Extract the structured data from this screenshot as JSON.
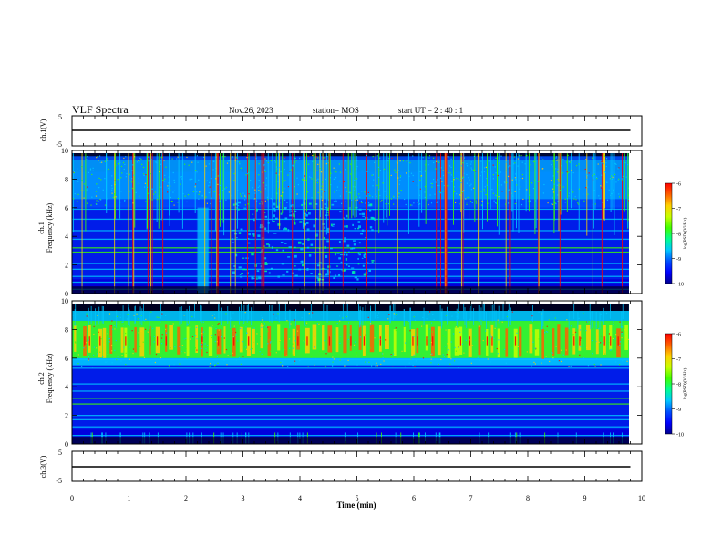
{
  "header": {
    "title": "VLF Spectra",
    "date": "Nov.26, 2023",
    "station": "station= MOS",
    "start_ut": "start  UT =   2 : 40 : 1"
  },
  "colorbar_label": "log(PSD)(V²/Hz)",
  "colors": {
    "background": "#000020",
    "colormap": [
      "#000090",
      "#0000ff",
      "#0050ff",
      "#00c8ff",
      "#00ff90",
      "#40ff00",
      "#c8ff00",
      "#ffd000",
      "#ff6000",
      "#ff0000",
      "#ffffff"
    ]
  },
  "chart_data": [
    {
      "type": "line",
      "name": "ch1_waveform_panel",
      "ylabel": "ch.1(V)",
      "ylim": [
        -5,
        5
      ],
      "yticks": [
        "5",
        "-5"
      ],
      "xlim": [
        0,
        10
      ],
      "series": [
        {
          "x": [
            0,
            9.8
          ],
          "y": [
            0,
            0
          ]
        }
      ]
    },
    {
      "type": "heatmap",
      "name": "ch1_spectrogram",
      "ylabel": "ch.1\nFrequency (kHz)",
      "ylim": [
        0,
        10
      ],
      "yticks": [
        "0",
        "2",
        "4",
        "6",
        "8",
        "10"
      ],
      "xlim": [
        0,
        10
      ],
      "data_end_min": 9.8,
      "colorbar": {
        "range": [
          -10,
          -6
        ],
        "ticks": [
          "-6",
          "-7",
          "-8",
          "-9",
          "-10"
        ]
      },
      "features": {
        "sferic_band_khz": [
          6,
          10
        ],
        "broadband_burst_min": [
          2.2,
          2.4
        ],
        "hiss_region_min": [
          2.8,
          5.3
        ],
        "line_frequencies_khz": [
          0.3,
          0.8,
          1.2,
          1.7,
          2.1,
          2.9,
          3.2,
          3.8,
          4.4,
          5.2,
          5.9
        ]
      }
    },
    {
      "type": "heatmap",
      "name": "ch2_spectrogram",
      "ylabel": "ch.2\nFrequency (kHz)",
      "ylim": [
        0,
        10
      ],
      "yticks": [
        "0",
        "2",
        "4",
        "6",
        "8",
        "10"
      ],
      "xlim": [
        0,
        10
      ],
      "data_end_min": 9.8,
      "colorbar": {
        "range": [
          -10,
          -6
        ],
        "ticks": [
          "-6",
          "-7",
          "-8",
          "-9",
          "-10"
        ]
      },
      "features": {
        "chorus_band_khz": [
          5.5,
          9.3
        ],
        "chorus_peak_khz": 7.2,
        "line_frequencies_khz": [
          0.6,
          1.2,
          1.7,
          2.0,
          2.8,
          3.2,
          3.7,
          4.2,
          5.3,
          5.9
        ]
      }
    },
    {
      "type": "line",
      "name": "ch3_waveform_panel",
      "ylabel": "ch.3(V)",
      "ylim": [
        -5,
        5
      ],
      "yticks": [
        "5",
        "-5"
      ],
      "xlim": [
        0,
        10
      ],
      "xlabel": "Time  (min)",
      "xticks": [
        "0",
        "1",
        "2",
        "3",
        "4",
        "5",
        "6",
        "7",
        "8",
        "9",
        "10"
      ],
      "series": [
        {
          "x": [
            0,
            9.8
          ],
          "y": [
            0,
            0
          ]
        }
      ]
    }
  ]
}
